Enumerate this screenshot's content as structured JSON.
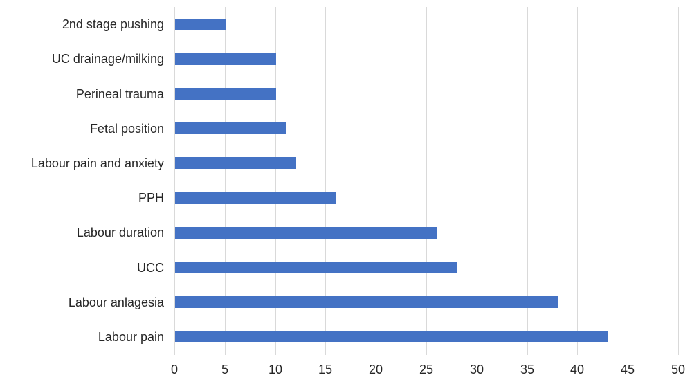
{
  "chart_data": {
    "type": "bar",
    "orientation": "horizontal",
    "title": "",
    "xlabel": "",
    "ylabel": "",
    "categories": [
      "2nd stage pushing",
      "UC drainage/milking",
      "Perineal trauma",
      "Fetal position",
      "Labour pain and anxiety",
      "PPH",
      "Labour duration",
      "UCC",
      "Labour anlagesia",
      "Labour pain"
    ],
    "values": [
      5,
      10,
      10,
      11,
      12,
      16,
      26,
      28,
      38,
      43
    ],
    "xlim": [
      0,
      50
    ],
    "xticks": [
      0,
      5,
      10,
      15,
      20,
      25,
      30,
      35,
      40,
      45,
      50
    ],
    "grid": true,
    "legend": false,
    "colors": {
      "bar": "#4472C4",
      "gridline": "#D9D9D9",
      "tick_label": "#262626",
      "category_label": "#262626",
      "background": "#FFFFFF"
    }
  }
}
